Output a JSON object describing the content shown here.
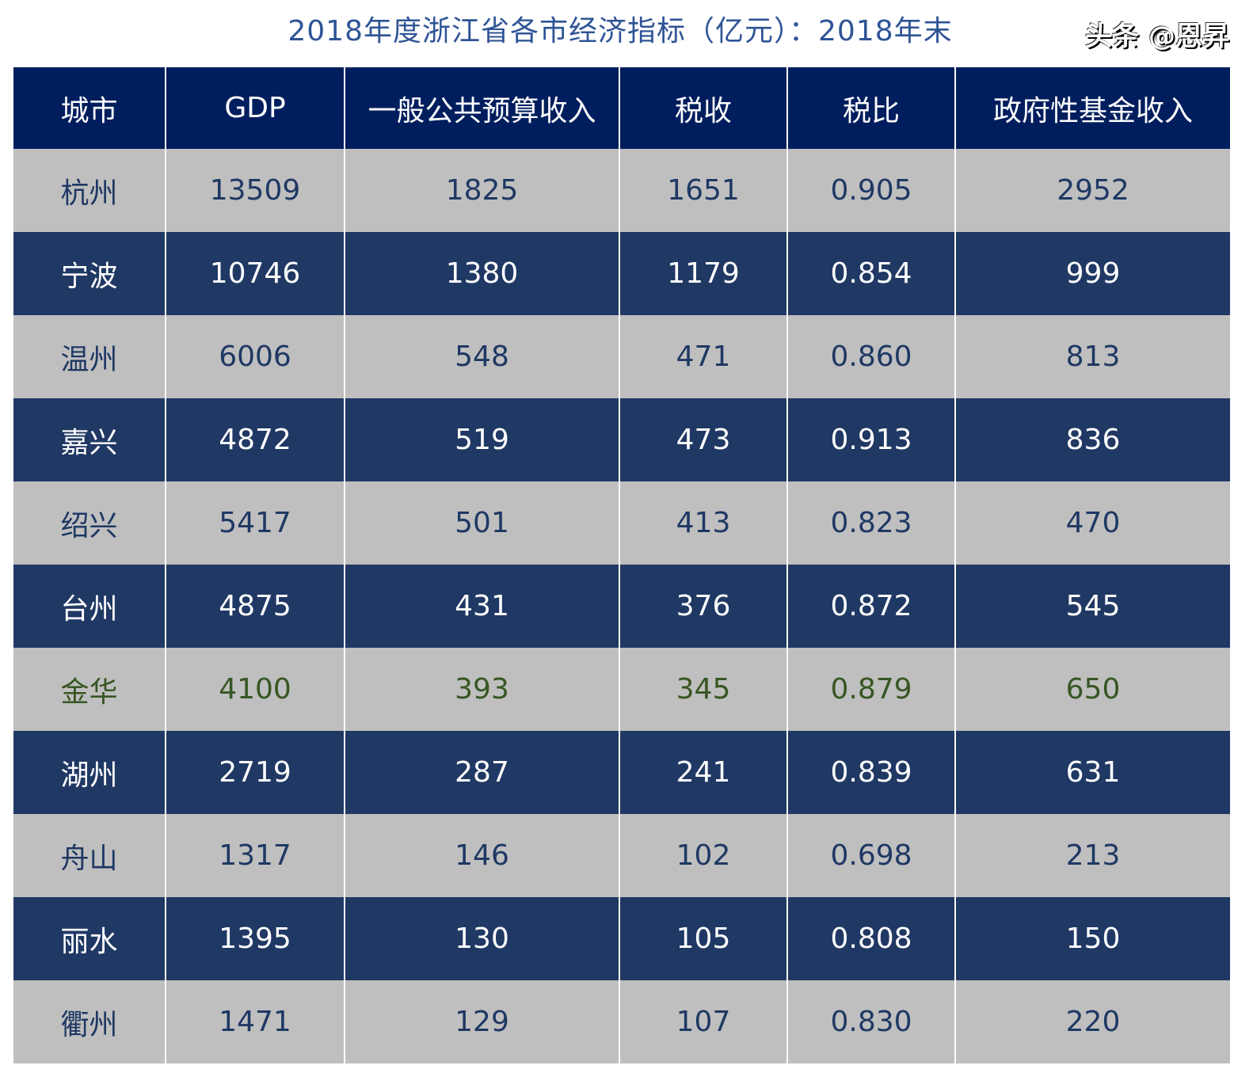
{
  "title": "2018年度浙江省各市经济指标（亿元）：2018年末",
  "watermark": "头条 @恩昇",
  "colors": {
    "header_bg": "#001e5e",
    "dark_row": "#203864",
    "light_row": "#bfbfbf",
    "light_text": "#1f3864",
    "highlight_text": "#375623",
    "title": "#2f5496"
  },
  "chart_data": {
    "type": "table",
    "title": "2018年度浙江省各市经济指标（亿元）：2018年末",
    "columns": [
      "城市",
      "GDP",
      "一般公共预算收入",
      "税收",
      "税比",
      "政府性基金收入"
    ],
    "highlight_row": "金华",
    "rows": [
      [
        "杭州",
        "13509",
        "1825",
        "1651",
        "0.905",
        "2952"
      ],
      [
        "宁波",
        "10746",
        "1380",
        "1179",
        "0.854",
        "999"
      ],
      [
        "温州",
        "6006",
        "548",
        "471",
        "0.860",
        "813"
      ],
      [
        "嘉兴",
        "4872",
        "519",
        "473",
        "0.913",
        "836"
      ],
      [
        "绍兴",
        "5417",
        "501",
        "413",
        "0.823",
        "470"
      ],
      [
        "台州",
        "4875",
        "431",
        "376",
        "0.872",
        "545"
      ],
      [
        "金华",
        "4100",
        "393",
        "345",
        "0.879",
        "650"
      ],
      [
        "湖州",
        "2719",
        "287",
        "241",
        "0.839",
        "631"
      ],
      [
        "舟山",
        "1317",
        "146",
        "102",
        "0.698",
        "213"
      ],
      [
        "丽水",
        "1395",
        "130",
        "105",
        "0.808",
        "150"
      ],
      [
        "衢州",
        "1471",
        "129",
        "107",
        "0.830",
        "220"
      ]
    ]
  }
}
